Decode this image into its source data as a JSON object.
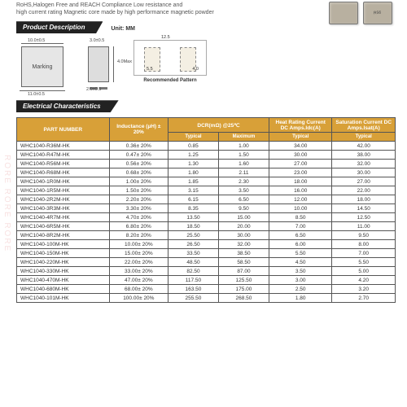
{
  "intro_line1": "RoHS,Halogen Free and REACH Compliance Low resistance and",
  "intro_line2": "high current rating Magnetic core made by high performance magnetic powder",
  "section_product": "Product Description",
  "section_elec": "Electrical Characteristics",
  "unit_label": "Unit: MM",
  "marking": "Marking",
  "chip_label": "R56",
  "dim_top_w": "10.0±0.5",
  "dim_bot_w": "11.0±0.5",
  "dim_side_h": "4.0Max",
  "dim_side_top": "3.0±0.5",
  "dim_foot": "2.0±0.5",
  "pat_w": "12.5",
  "pat_h1": "5.5",
  "pat_h2": "4.0",
  "pattern_label": "Recommended Pattern",
  "headers": {
    "part": "PART NUMBER",
    "ind": "Inductance (µH) ± 20%",
    "dcr": "DCR(mΩ) @25℃",
    "heat": "Heat Rating Current DC Amps.Idc(A)",
    "sat": "Saturation Current DC Amps.Isat(A)",
    "typ": "Typical",
    "max": "Maximum"
  },
  "rows": [
    [
      "WHC1040-R36M-HK",
      "0.36± 20%",
      "0.85",
      "1.00",
      "34.00",
      "42.00"
    ],
    [
      "WHC1040-R47M-HK",
      "0.47± 20%",
      "1.25",
      "1.50",
      "30.00",
      "38.00"
    ],
    [
      "WHC1040-R56M-HK",
      "0.56± 20%",
      "1.30",
      "1.60",
      "27.00",
      "32.00"
    ],
    [
      "WHC1040-R68M-HK",
      "0.68± 20%",
      "1.80",
      "2.11",
      "23.00",
      "30.00"
    ],
    [
      "WHC1040-1R0M-HK",
      "1.00± 20%",
      "1.85",
      "2.30",
      "18.00",
      "27.00"
    ],
    [
      "WHC1040-1R5M-HK",
      "1.50± 20%",
      "3.15",
      "3.50",
      "16.00",
      "22.00"
    ],
    [
      "WHC1040-2R2M-HK",
      "2.20± 20%",
      "6.15",
      "6.50",
      "12.00",
      "18.00"
    ],
    [
      "WHC1040-3R3M-HK",
      "3.30± 20%",
      "8.35",
      "9.50",
      "10.00",
      "14.50"
    ],
    [
      "WHC1040-4R7M-HK",
      "4.70± 20%",
      "13.50",
      "15.00",
      "8.50",
      "12.50"
    ],
    [
      "WHC1040-6R5M-HK",
      "6.80± 20%",
      "18.50",
      "20.00",
      "7.00",
      "11.00"
    ],
    [
      "WHC1040-8R2M-HK",
      "8.20± 20%",
      "25.50",
      "30.00",
      "6.50",
      "9.50"
    ],
    [
      "WHC1040-100M-HK",
      "10.00± 20%",
      "26.50",
      "32.00",
      "6.00",
      "8.00"
    ],
    [
      "WHC1040-150M-HK",
      "15.00± 20%",
      "33.50",
      "38.50",
      "5.50",
      "7.00"
    ],
    [
      "WHC1040-220M-HK",
      "22.00± 20%",
      "48.50",
      "58.50",
      "4.50",
      "5.50"
    ],
    [
      "WHC1040-330M-HK",
      "33.00± 20%",
      "82.50",
      "87.00",
      "3.50",
      "5.00"
    ],
    [
      "WHC1040-470M-HK",
      "47.00± 20%",
      "117.50",
      "125.50",
      "3.00",
      "4.20"
    ],
    [
      "WHC1040-680M-HK",
      "68.00± 20%",
      "163.50",
      "175.00",
      "2.50",
      "3.20"
    ],
    [
      "WHC1040-101M-HK",
      "100.00± 20%",
      "255.50",
      "268.50",
      "1.80",
      "2.70"
    ]
  ]
}
